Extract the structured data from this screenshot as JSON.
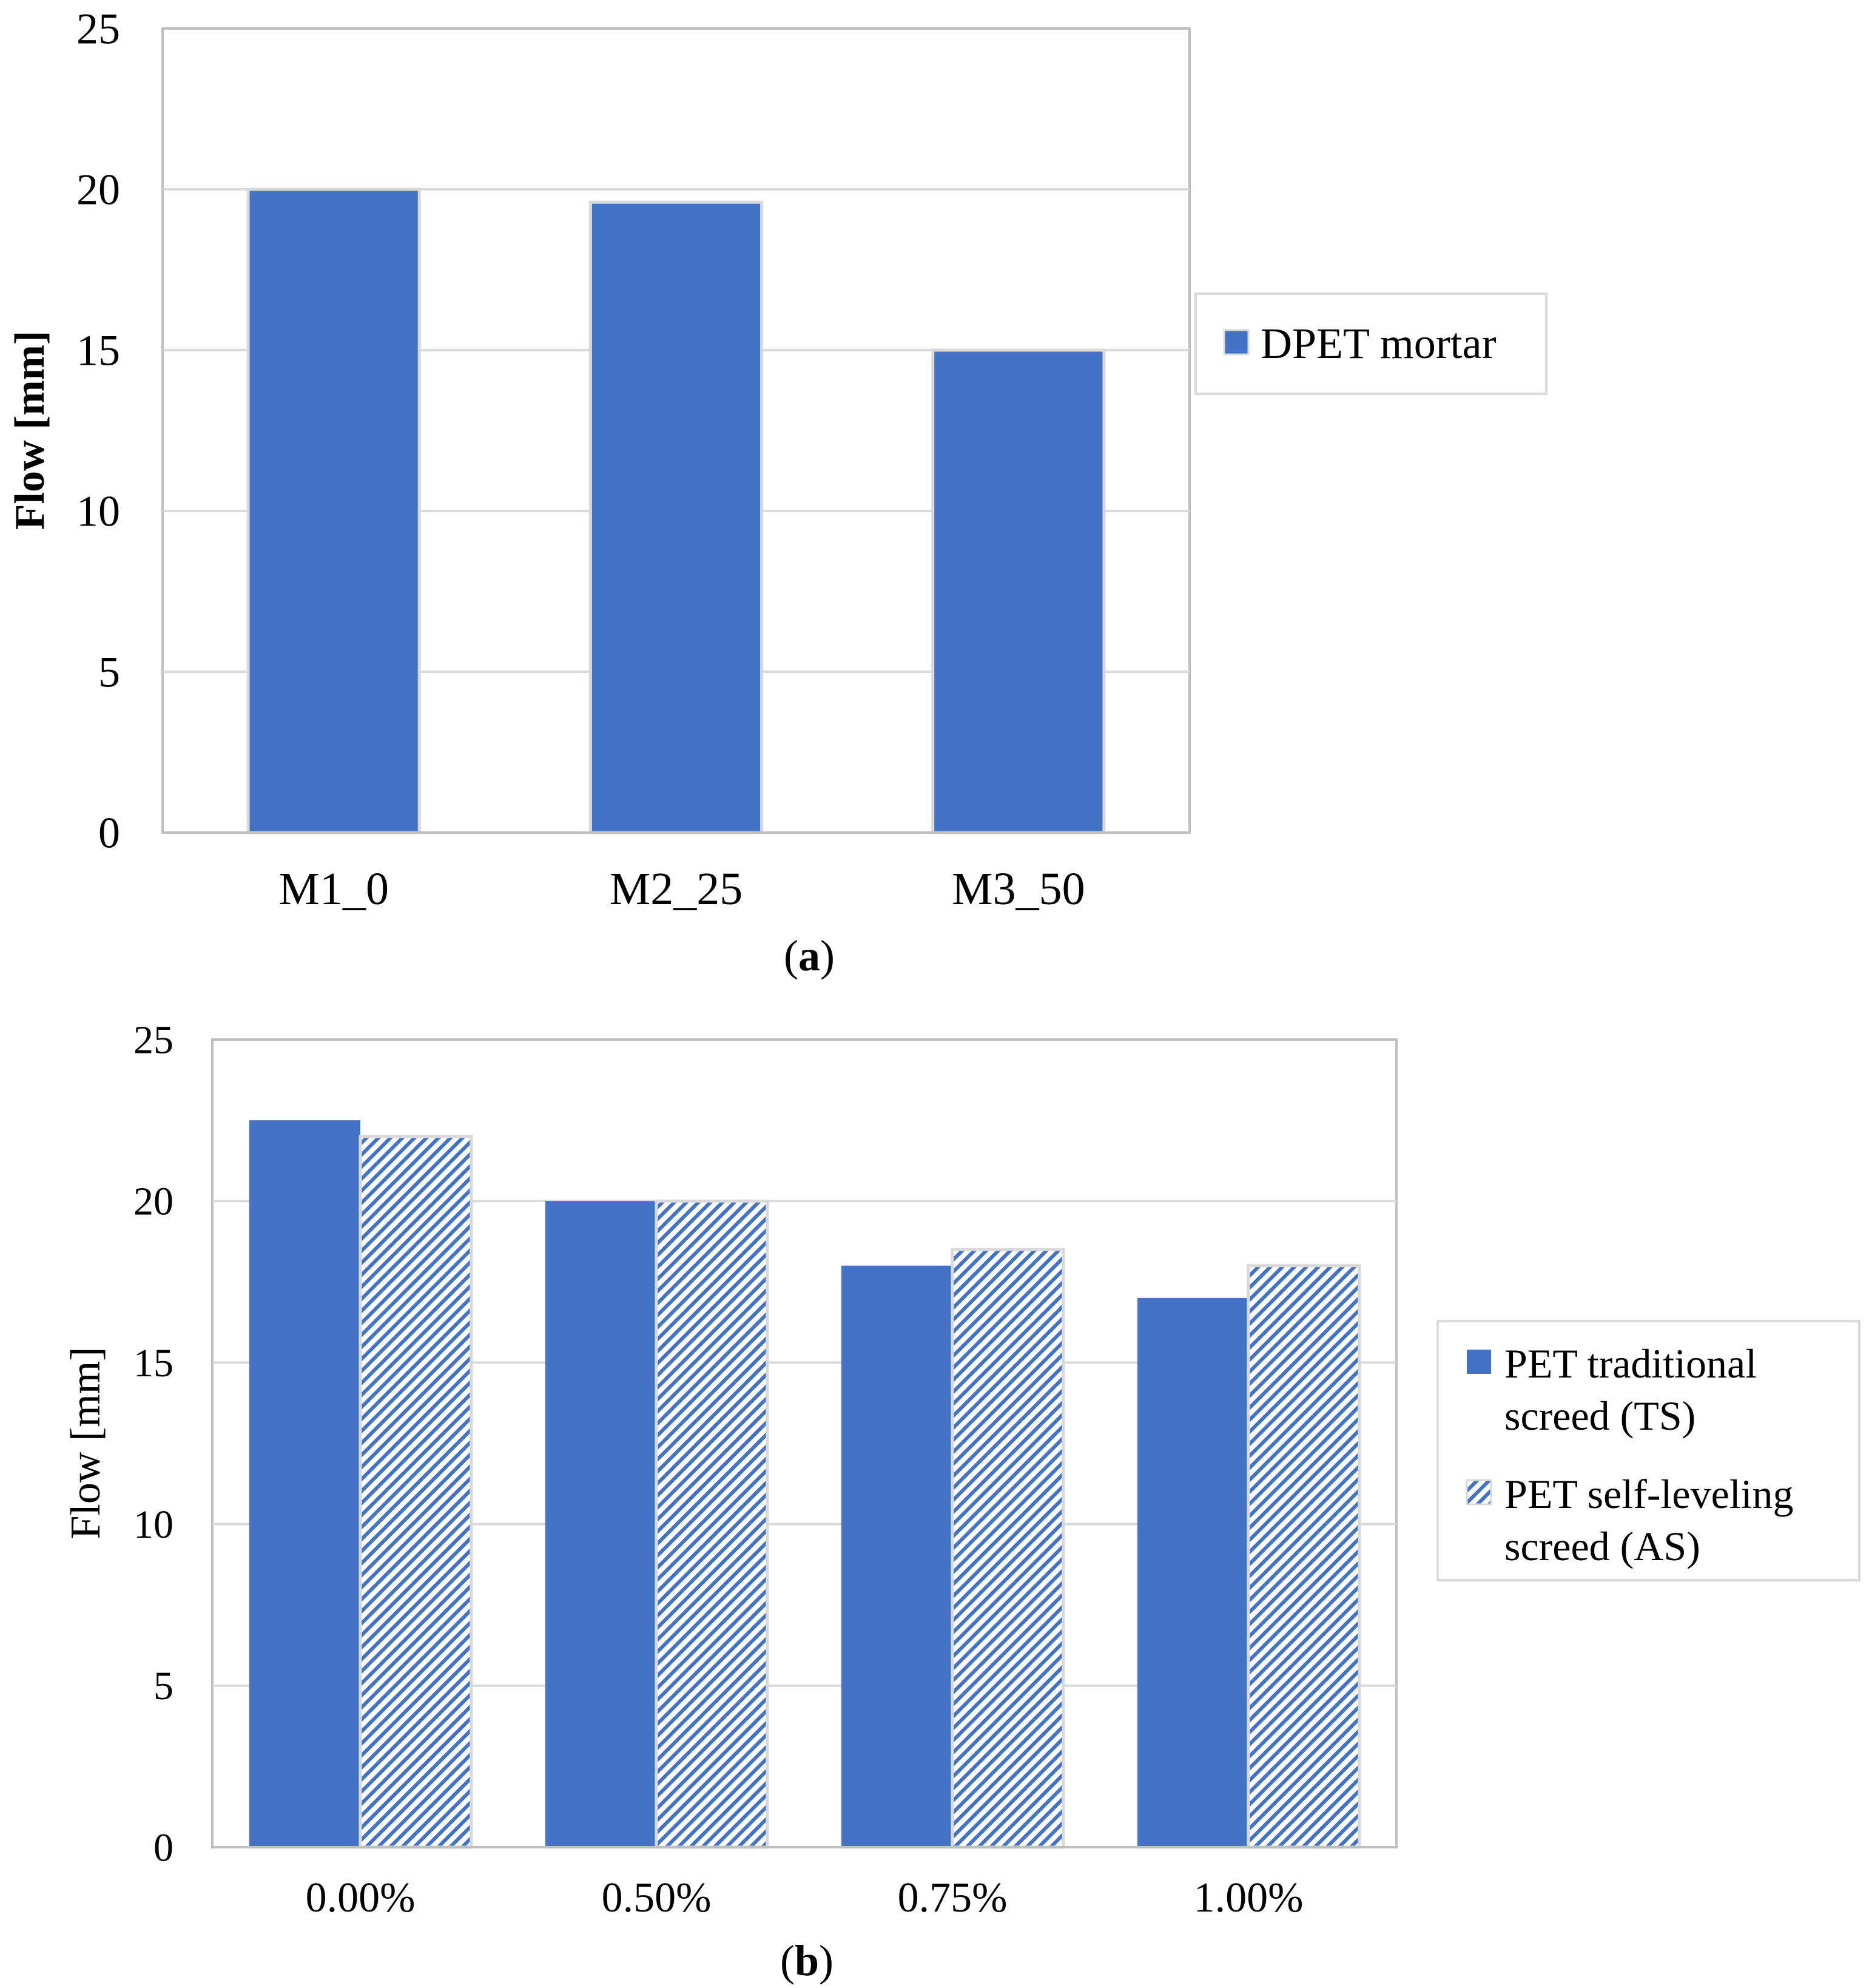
{
  "chart_data": [
    {
      "panel_label": "a",
      "type": "bar",
      "title": "",
      "xlabel": "",
      "ylabel": "Flow [mm]",
      "ylim": [
        0,
        25
      ],
      "yticks": [
        "0",
        "5",
        "10",
        "15",
        "20",
        "25"
      ],
      "grid": true,
      "legend_position": "right",
      "categories": [
        "M1_0",
        "M2_25",
        "M3_50"
      ],
      "series": [
        {
          "name": "DPET mortar",
          "values": [
            20,
            19.6,
            15
          ],
          "fill": "solid",
          "color": "#4472C4"
        }
      ]
    },
    {
      "panel_label": "b",
      "type": "bar",
      "title": "",
      "xlabel": "",
      "ylabel": "Flow [mm]",
      "ylim": [
        0,
        25
      ],
      "yticks": [
        "0",
        "5",
        "10",
        "15",
        "20",
        "25"
      ],
      "grid": true,
      "legend_position": "right",
      "categories": [
        "0.00%",
        "0.50%",
        "0.75%",
        "1.00%"
      ],
      "series": [
        {
          "name": "PET traditional screed (TS)",
          "legend_lines": [
            "PET traditional",
            "screed (TS)"
          ],
          "values": [
            22.5,
            20,
            18,
            17
          ],
          "fill": "solid",
          "color": "#4472C4"
        },
        {
          "name": "PET self-leveling screed (AS)",
          "legend_lines": [
            "PET self-leveling",
            "screed (AS)"
          ],
          "values": [
            22,
            20,
            18.5,
            18
          ],
          "fill": "hatched",
          "color": "#4472C4"
        }
      ]
    }
  ],
  "colors": {
    "bar": "#4472C4",
    "grid": "#d9d9d9",
    "axis": "#bfbfbf",
    "text": "#000000"
  },
  "panel_labels": [
    "a",
    "b"
  ]
}
